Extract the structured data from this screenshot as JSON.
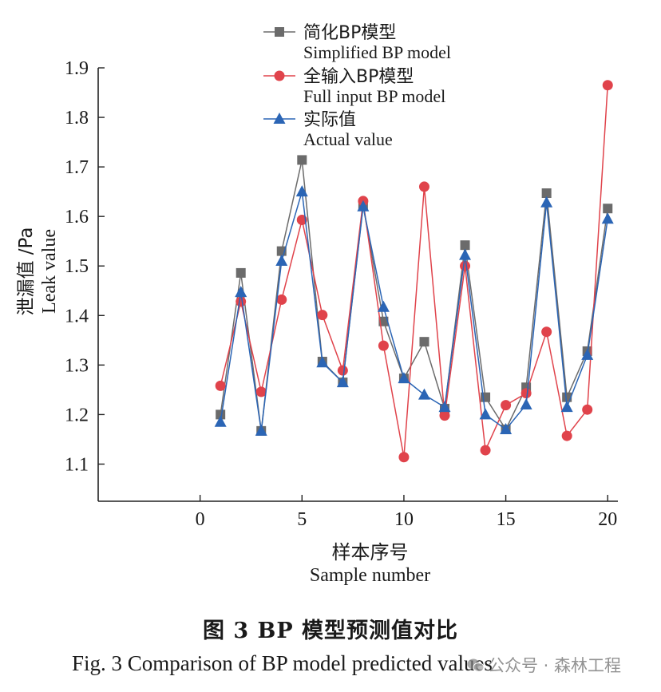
{
  "chart_data": {
    "type": "line",
    "x": [
      1,
      2,
      3,
      4,
      5,
      6,
      7,
      8,
      9,
      10,
      11,
      12,
      13,
      14,
      15,
      16,
      17,
      18,
      19,
      20
    ],
    "series": [
      {
        "name_cn": "简化BP模型",
        "name_en": "Simplified BP model",
        "marker": "square",
        "color": "#6b6b6b",
        "values": [
          1.2,
          1.486,
          1.167,
          1.53,
          1.714,
          1.307,
          1.265,
          1.622,
          1.388,
          1.273,
          1.347,
          1.212,
          1.542,
          1.235,
          1.17,
          1.255,
          1.647,
          1.235,
          1.328,
          1.616
        ]
      },
      {
        "name_cn": "全输入BP模型",
        "name_en": "Full input BP model",
        "marker": "circle",
        "color": "#e0434b",
        "values": [
          1.258,
          1.428,
          1.246,
          1.432,
          1.593,
          1.401,
          1.289,
          1.631,
          1.339,
          1.114,
          1.66,
          1.198,
          1.5,
          1.128,
          1.219,
          1.243,
          1.367,
          1.157,
          1.21,
          1.865
        ]
      },
      {
        "name_cn": "实际值",
        "name_en": "Actual value",
        "marker": "triangle",
        "color": "#2b65b5",
        "values": [
          1.185,
          1.447,
          1.167,
          1.51,
          1.65,
          1.305,
          1.265,
          1.62,
          1.417,
          1.273,
          1.24,
          1.215,
          1.522,
          1.2,
          1.17,
          1.22,
          1.628,
          1.215,
          1.32,
          1.595
        ]
      }
    ],
    "xlabel_cn": "样本序号",
    "xlabel_en": "Sample number",
    "ylabel_cn": "泄漏值 /Pa",
    "ylabel_en": "Leak value",
    "xlim": [
      -5,
      20.5
    ],
    "ylim": [
      1.025,
      1.9
    ],
    "xticks": [
      0,
      5,
      10,
      15,
      20
    ],
    "yticks": [
      1.1,
      1.2,
      1.3,
      1.4,
      1.5,
      1.6,
      1.7,
      1.8,
      1.9
    ],
    "legend_position": "top",
    "grid": false
  },
  "caption": {
    "cn": "图 3    BP 模型预测值对比",
    "en": "Fig. 3  Comparison of BP model predicted values"
  },
  "watermark": "公众号 · 森林工程"
}
